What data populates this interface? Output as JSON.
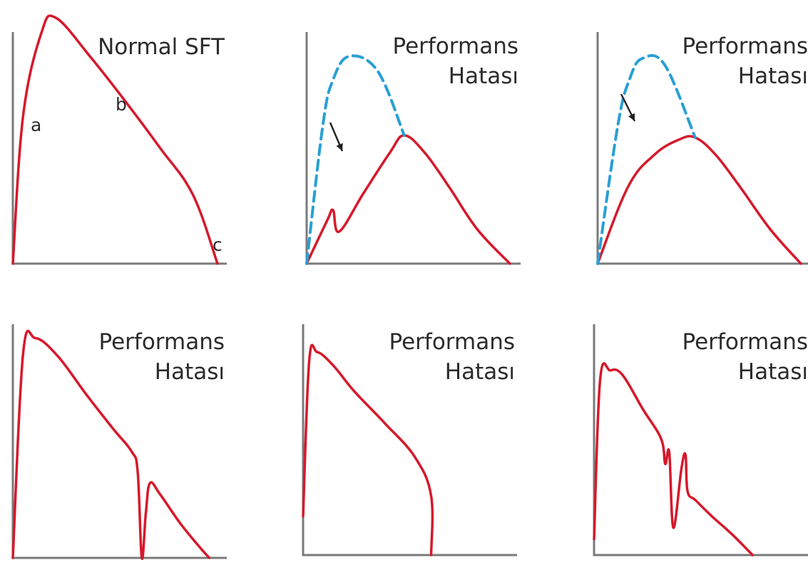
{
  "chart_data": [
    {
      "type": "line",
      "title": "Normal SFT",
      "point_labels": [
        "a",
        "b",
        "c"
      ],
      "series": [
        {
          "values": [
            [
              0,
              0
            ],
            [
              5,
              60
            ],
            [
              14,
              94
            ],
            [
              21,
              100
            ],
            [
              38,
              84
            ],
            [
              55,
              66
            ],
            [
              72,
              47
            ],
            [
              88,
              28
            ],
            [
              100,
              0
            ]
          ]
        }
      ]
    },
    {
      "type": "line",
      "title": [
        "Performans",
        "Hatası"
      ],
      "series": [
        {
          "values": [
            [
              0,
              0
            ],
            [
              10,
              20
            ],
            [
              13,
              25
            ],
            [
              16,
              15
            ],
            [
              28,
              33
            ],
            [
              41,
              52
            ],
            [
              48,
              60
            ],
            [
              58,
              52
            ],
            [
              70,
              36
            ],
            [
              84,
              16
            ],
            [
              100,
              0
            ]
          ]
        },
        {
          "dashed": true,
          "color": "#2a9fd4",
          "values": [
            [
              0,
              0
            ],
            [
              8,
              65
            ],
            [
              13,
              86
            ],
            [
              21,
              97
            ],
            [
              35,
              90
            ],
            [
              48,
              60
            ]
          ]
        }
      ]
    },
    {
      "type": "line",
      "title": [
        "Performans",
        "Hatası"
      ],
      "series": [
        {
          "values": [
            [
              0,
              0
            ],
            [
              15,
              36
            ],
            [
              28,
              51
            ],
            [
              40,
              58
            ],
            [
              48,
              59
            ],
            [
              58,
              51
            ],
            [
              70,
              36
            ],
            [
              85,
              16
            ],
            [
              100,
              0
            ]
          ]
        },
        {
          "dashed": true,
          "color": "#2a9fd4",
          "values": [
            [
              0,
              0
            ],
            [
              10,
              65
            ],
            [
              16,
              87
            ],
            [
              22,
              96
            ],
            [
              33,
              93
            ],
            [
              48,
              59
            ]
          ]
        }
      ]
    },
    {
      "type": "line",
      "title": [
        "Performans",
        "Hatası"
      ],
      "series": [
        {
          "values": [
            [
              0,
              0
            ],
            [
              5,
              90
            ],
            [
              11,
              97
            ],
            [
              22,
              89
            ],
            [
              36,
              72
            ],
            [
              49,
              57
            ],
            [
              58,
              47
            ],
            [
              61,
              38
            ],
            [
              63,
              0
            ],
            [
              65,
              20
            ],
            [
              67,
              33
            ],
            [
              72,
              28
            ],
            [
              82,
              15
            ],
            [
              92,
              4
            ],
            [
              96,
              0
            ]
          ]
        }
      ]
    },
    {
      "type": "line",
      "title": [
        "Performans",
        "Hatası"
      ],
      "series": [
        {
          "values": [
            [
              0,
              17
            ],
            [
              3,
              85
            ],
            [
              7,
              89
            ],
            [
              15,
              83
            ],
            [
              25,
              72
            ],
            [
              40,
              58
            ],
            [
              55,
              43
            ],
            [
              63,
              26
            ],
            [
              63,
              0
            ]
          ]
        }
      ]
    },
    {
      "type": "line",
      "title": [
        "Performans",
        "Hatası"
      ],
      "series": [
        {
          "values": [
            [
              0,
              7
            ],
            [
              3,
              77
            ],
            [
              8,
              81
            ],
            [
              14,
              79
            ],
            [
              24,
              64
            ],
            [
              33,
              51
            ],
            [
              35,
              40
            ],
            [
              37,
              45
            ],
            [
              39,
              12
            ],
            [
              43,
              38
            ],
            [
              45,
              44
            ],
            [
              46,
              28
            ],
            [
              50,
              24
            ],
            [
              58,
              17
            ],
            [
              68,
              9
            ],
            [
              78,
              0
            ]
          ]
        }
      ]
    }
  ]
}
